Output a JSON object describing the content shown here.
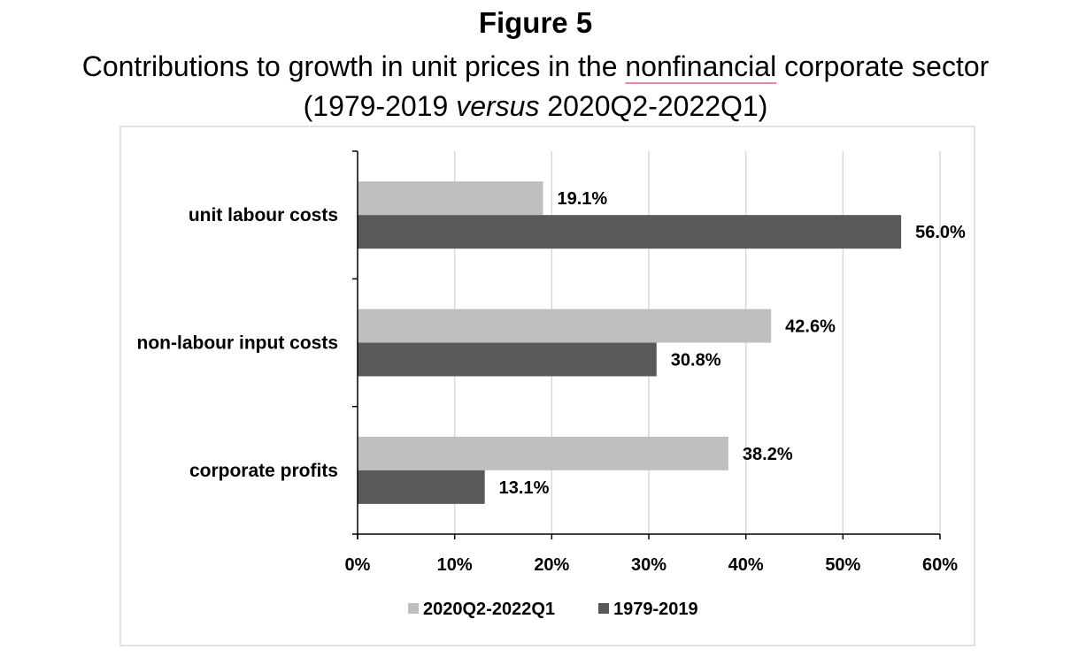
{
  "figure": {
    "label": "Figure 5",
    "title_before": "Contributions to growth in unit prices in the ",
    "title_flagged_word": "nonfinancial",
    "title_after": " corporate sector",
    "subtitle_open": "(1979-2019 ",
    "subtitle_italic": "versus",
    "subtitle_close": " 2020Q2-2022Q1)"
  },
  "chart_data": {
    "type": "bar",
    "orientation": "horizontal",
    "categories": [
      "unit labour costs",
      "non-labour input costs",
      "corporate profits"
    ],
    "series": [
      {
        "name": "2020Q2-2022Q1",
        "values": [
          19.1,
          42.6,
          38.2
        ],
        "labels": [
          "19.1%",
          "42.6%",
          "38.2%"
        ],
        "color": "#bfbfbf"
      },
      {
        "name": "1979-2019",
        "values": [
          56.0,
          30.8,
          13.1
        ],
        "labels": [
          "56.0%",
          "30.8%",
          "13.1%"
        ],
        "color": "#595959"
      }
    ],
    "xlim": [
      0,
      60
    ],
    "xticks": [
      0,
      10,
      20,
      30,
      40,
      50,
      60
    ],
    "xtick_labels": [
      "0%",
      "10%",
      "20%",
      "30%",
      "40%",
      "50%",
      "60%"
    ],
    "xlabel": "",
    "ylabel": "",
    "grid": "vertical",
    "legend_position": "bottom",
    "frame_color": "#d9d9d9",
    "grid_color": "#d9d9d9",
    "axis_color": "#000000"
  }
}
